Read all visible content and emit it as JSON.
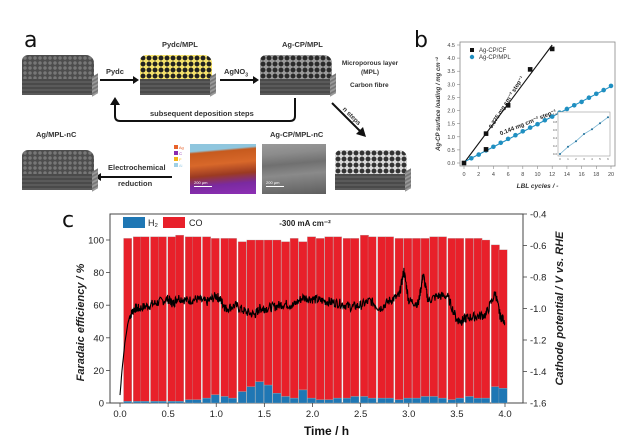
{
  "panel_a": {
    "letter": "a",
    "labels": {
      "pydc_mpl": "Pydc/MPL",
      "ag_cp_mpl": "Ag-CP/MPL",
      "mpl": "Microporous layer (MPL)",
      "carbon_fibre": "Carbon fibre",
      "ag_mpl_nc": "Ag/MPL-nC",
      "ag_cp_mpl_nc": "Ag-CP/MPL-nC"
    },
    "arrows": {
      "pydc": "Pydc",
      "agno3": "AgNO",
      "agno3_sub": "3",
      "subsequent": "subsequent deposition steps",
      "n_steps": "n steps",
      "electrochem_1": "Electrochemical",
      "electrochem_2": "reduction"
    },
    "eds_legend": [
      {
        "label": "Ag",
        "color": "#e8622a"
      },
      {
        "label": "C",
        "color": "#8a2bb0"
      },
      {
        "label": "F",
        "color": "#f2b416"
      },
      {
        "label": "Al",
        "color": "#9fd0e6"
      }
    ],
    "scale_bar": "200 µm"
  },
  "panel_b": {
    "letter": "b"
  },
  "panel_c": {
    "letter": "c"
  },
  "chart_data": [
    {
      "id": "b",
      "type": "scatter",
      "xlabel": "LBL cycles / -",
      "ylabel": "Ag-CP surface loading / mg cm⁻²",
      "xlim": [
        0,
        20
      ],
      "ylim": [
        0,
        4.5
      ],
      "xticks": [
        0,
        2,
        4,
        6,
        8,
        10,
        12,
        14,
        16,
        18,
        20
      ],
      "yticks": [
        0.0,
        0.5,
        1.0,
        1.5,
        2.0,
        2.5,
        3.0,
        3.5,
        4.0,
        4.5
      ],
      "legend_position": "top-left",
      "series": [
        {
          "name": "Ag-CP/CF",
          "color": "#111111",
          "marker": "square",
          "x": [
            0,
            3,
            3,
            6,
            9,
            12
          ],
          "y": [
            0.0,
            0.52,
            1.12,
            2.2,
            3.57,
            4.35
          ],
          "fit_slope": 0.375,
          "annotation": "0.375 mg cm⁻² step⁻¹"
        },
        {
          "name": "Ag-CP/MPL",
          "color": "#1f8fc1",
          "marker": "circle",
          "x": [
            1,
            2,
            3,
            4,
            5,
            6,
            7,
            8,
            9,
            10,
            11,
            12,
            13,
            14,
            15,
            16,
            17,
            18,
            19,
            20
          ],
          "y": [
            0.18,
            0.32,
            0.48,
            0.62,
            0.77,
            0.92,
            1.06,
            1.21,
            1.35,
            1.48,
            1.63,
            1.77,
            1.92,
            2.06,
            2.2,
            2.33,
            2.49,
            2.64,
            2.78,
            2.94
          ],
          "fit_slope": 0.144,
          "annotation": "0.144 mg cm⁻² step⁻¹"
        }
      ],
      "inset": {
        "xlim": [
          0,
          6
        ],
        "ylim": [
          0,
          1.0
        ],
        "xticks": [
          0,
          1,
          2,
          3,
          4,
          5,
          6
        ],
        "yticks": [
          0.0,
          0.2,
          0.4,
          0.6,
          0.8,
          1.0
        ],
        "x": [
          0,
          1,
          2,
          3,
          4,
          5,
          6
        ],
        "y": [
          0.0,
          0.18,
          0.32,
          0.5,
          0.62,
          0.77,
          0.92
        ]
      }
    },
    {
      "id": "c",
      "type": "bar",
      "title": "-300 mA cm⁻²",
      "xlabel": "Time / h",
      "ylabel": "Faradaic efficiency / %",
      "ylabel_right": "Cathode potential / V vs. RHE",
      "xlim": [
        -0.1,
        4.2
      ],
      "ylim": [
        0,
        115
      ],
      "ylim_right": [
        -1.6,
        -0.4
      ],
      "xticks": [
        0.0,
        0.5,
        1.0,
        1.5,
        2.0,
        2.5,
        3.0,
        3.5,
        4.0
      ],
      "yticks": [
        0,
        20,
        40,
        60,
        80,
        100
      ],
      "yticks_right": [
        -0.4,
        -0.6,
        -0.8,
        -1.0,
        -1.2,
        -1.4,
        -1.6
      ],
      "legend": [
        {
          "name": "H₂",
          "color": "#1f77b4"
        },
        {
          "name": "CO",
          "color": "#e8202a"
        }
      ],
      "legend_position": "top-left",
      "bar_x": [
        0.08,
        0.18,
        0.26,
        0.36,
        0.44,
        0.54,
        0.62,
        0.72,
        0.8,
        0.9,
        0.99,
        1.09,
        1.17,
        1.27,
        1.36,
        1.45,
        1.54,
        1.63,
        1.72,
        1.81,
        1.9,
        1.99,
        2.08,
        2.17,
        2.26,
        2.36,
        2.44,
        2.54,
        2.62,
        2.72,
        2.8,
        2.9,
        2.99,
        3.08,
        3.17,
        3.26,
        3.35,
        3.45,
        3.53,
        3.63,
        3.72,
        3.8,
        3.9,
        3.98
      ],
      "series": [
        {
          "name": "H₂",
          "values": [
            1,
            1,
            1,
            1,
            1,
            1,
            1,
            2,
            2,
            3,
            5,
            4,
            3,
            7,
            10,
            13,
            11,
            6,
            4,
            3,
            8,
            3,
            2,
            2,
            3,
            3,
            4,
            4,
            3,
            3,
            3,
            2,
            3,
            3,
            4,
            4,
            3,
            2,
            3,
            4,
            3,
            3,
            10,
            9
          ]
        },
        {
          "name": "CO",
          "values": [
            100,
            101,
            101,
            101,
            101,
            101,
            102,
            100,
            100,
            99,
            96,
            97,
            98,
            92,
            90,
            87,
            89,
            94,
            95,
            98,
            91,
            99,
            99,
            100,
            99,
            98,
            97,
            99,
            99,
            99,
            99,
            99,
            98,
            98,
            97,
            98,
            99,
            99,
            98,
            97,
            98,
            97,
            87,
            85
          ]
        }
      ],
      "potential_trace": {
        "t": [
          0.0,
          0.02,
          0.05,
          0.08,
          0.1,
          0.15,
          0.2,
          0.3,
          0.4,
          0.5,
          0.55,
          0.6,
          0.7,
          0.8,
          0.9,
          1.0,
          1.05,
          1.1,
          1.2,
          1.3,
          1.4,
          1.45,
          1.5,
          1.6,
          1.7,
          1.8,
          1.9,
          2.0,
          2.1,
          2.2,
          2.3,
          2.4,
          2.5,
          2.6,
          2.7,
          2.8,
          2.9,
          2.95,
          3.0,
          3.1,
          3.15,
          3.2,
          3.3,
          3.4,
          3.5,
          3.55,
          3.6,
          3.7,
          3.8,
          3.9,
          3.95,
          4.0
        ],
        "v": [
          -1.55,
          -1.4,
          -1.22,
          -1.1,
          -1.05,
          -1.0,
          -1.0,
          -0.98,
          -0.96,
          -0.94,
          -0.97,
          -0.93,
          -0.95,
          -0.94,
          -0.96,
          -0.92,
          -0.95,
          -1.0,
          -0.98,
          -1.02,
          -1.04,
          -1.0,
          -1.0,
          -0.99,
          -0.97,
          -0.98,
          -0.93,
          -0.94,
          -0.95,
          -0.96,
          -0.97,
          -0.99,
          -0.98,
          -0.95,
          -1.0,
          -0.95,
          -0.92,
          -0.76,
          -0.95,
          -0.97,
          -0.78,
          -0.95,
          -0.92,
          -0.92,
          -1.07,
          -1.08,
          -1.06,
          -1.05,
          -1.04,
          -0.9,
          -1.05,
          -1.08
        ]
      }
    }
  ]
}
